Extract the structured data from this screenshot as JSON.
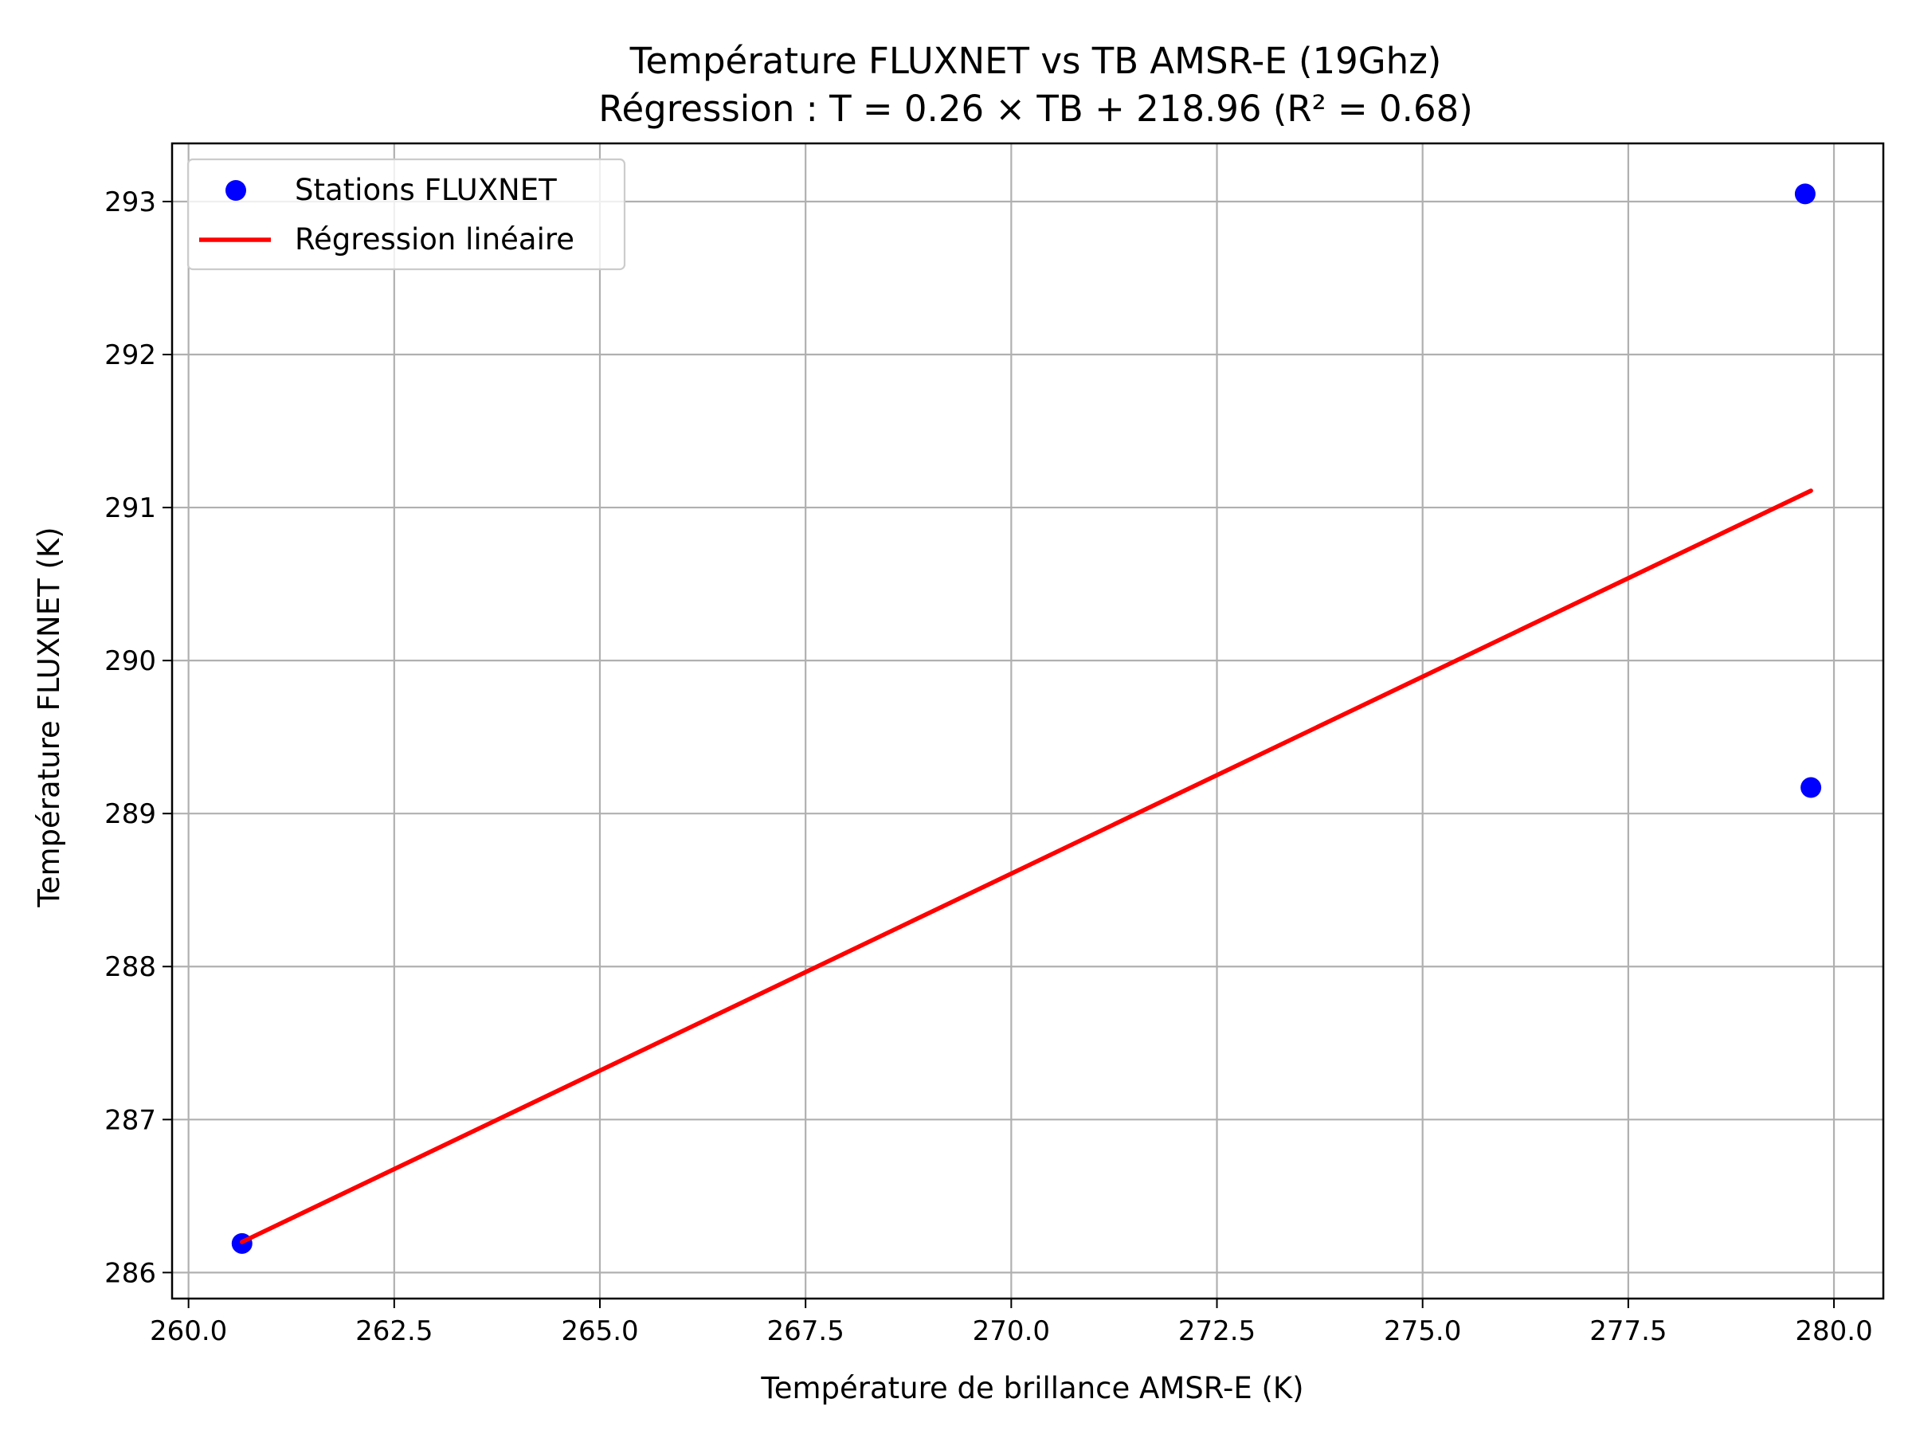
{
  "chart_data": {
    "type": "scatter",
    "title": "Température FLUXNET vs TB AMSR-E (19Ghz)",
    "subtitle": "Régression : T = 0.26 × TB + 218.96 (R² = 0.68)",
    "xlabel": "Température de brillance AMSR-E (K)",
    "ylabel": "Température FLUXNET (K)",
    "xlim": [
      259.8,
      280.6
    ],
    "ylim": [
      285.83,
      293.38
    ],
    "xticks": [
      260.0,
      262.5,
      265.0,
      267.5,
      270.0,
      272.5,
      275.0,
      277.5,
      280.0
    ],
    "xtick_labels": [
      "260.0",
      "262.5",
      "265.0",
      "267.5",
      "270.0",
      "272.5",
      "275.0",
      "277.5",
      "280.0"
    ],
    "yticks": [
      286,
      287,
      288,
      289,
      290,
      291,
      292,
      293
    ],
    "ytick_labels": [
      "286",
      "287",
      "288",
      "289",
      "290",
      "291",
      "292",
      "293"
    ],
    "grid": true,
    "legend_position": "top-left",
    "series": [
      {
        "name": "Stations FLUXNET",
        "kind": "scatter",
        "color": "#0000ff",
        "points": [
          {
            "x": 260.65,
            "y": 286.19
          },
          {
            "x": 279.65,
            "y": 293.05
          },
          {
            "x": 279.72,
            "y": 289.17
          }
        ]
      },
      {
        "name": "Régression linéaire",
        "kind": "line",
        "color": "#ff0000",
        "points": [
          {
            "x": 260.65,
            "y": 286.2
          },
          {
            "x": 279.72,
            "y": 291.11
          }
        ]
      }
    ]
  }
}
